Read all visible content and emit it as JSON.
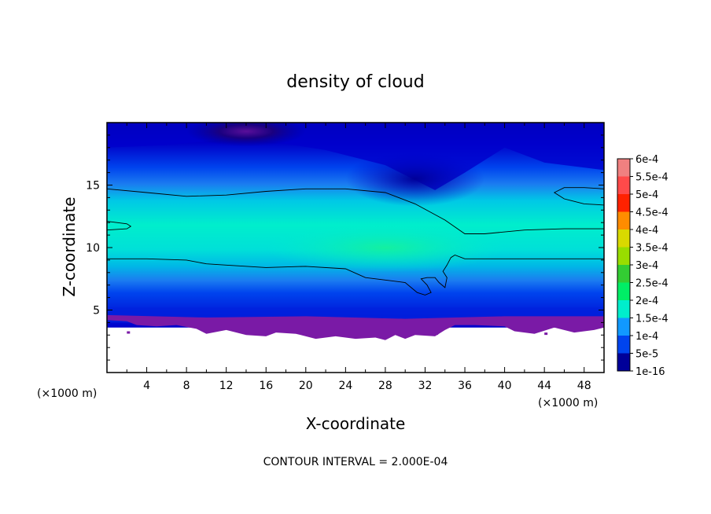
{
  "chart_data": {
    "type": "heatmap",
    "title": "density of cloud",
    "xlabel": "X-coordinate",
    "ylabel": "Z-coordinate",
    "x_unit": "(×1000 m)",
    "y_unit": "(×1000 m)",
    "xlim": [
      0,
      50
    ],
    "ylim": [
      0,
      20
    ],
    "x_ticks": [
      4,
      8,
      12,
      16,
      20,
      24,
      28,
      32,
      36,
      40,
      44,
      48
    ],
    "y_ticks": [
      5,
      10,
      15
    ],
    "footer": "CONTOUR INTERVAL = 2.000E-04",
    "contour_interval": 0.0002,
    "colorbar": {
      "labels": [
        "6e-4",
        "5.5e-4",
        "5e-4",
        "4.5e-4",
        "4e-4",
        "3.5e-4",
        "3e-4",
        "2.5e-4",
        "2e-4",
        "1.5e-4",
        "1e-4",
        "5e-5",
        "1e-16"
      ],
      "colors": [
        "#f08080",
        "#ff4a4a",
        "#ff2200",
        "#ff8c00",
        "#d9d900",
        "#99dd00",
        "#33cc33",
        "#00ee66",
        "#00eecc",
        "#1199ff",
        "#0044ee",
        "#000099",
        "#7a1aa6"
      ]
    },
    "contour_value": 0.0002
  }
}
